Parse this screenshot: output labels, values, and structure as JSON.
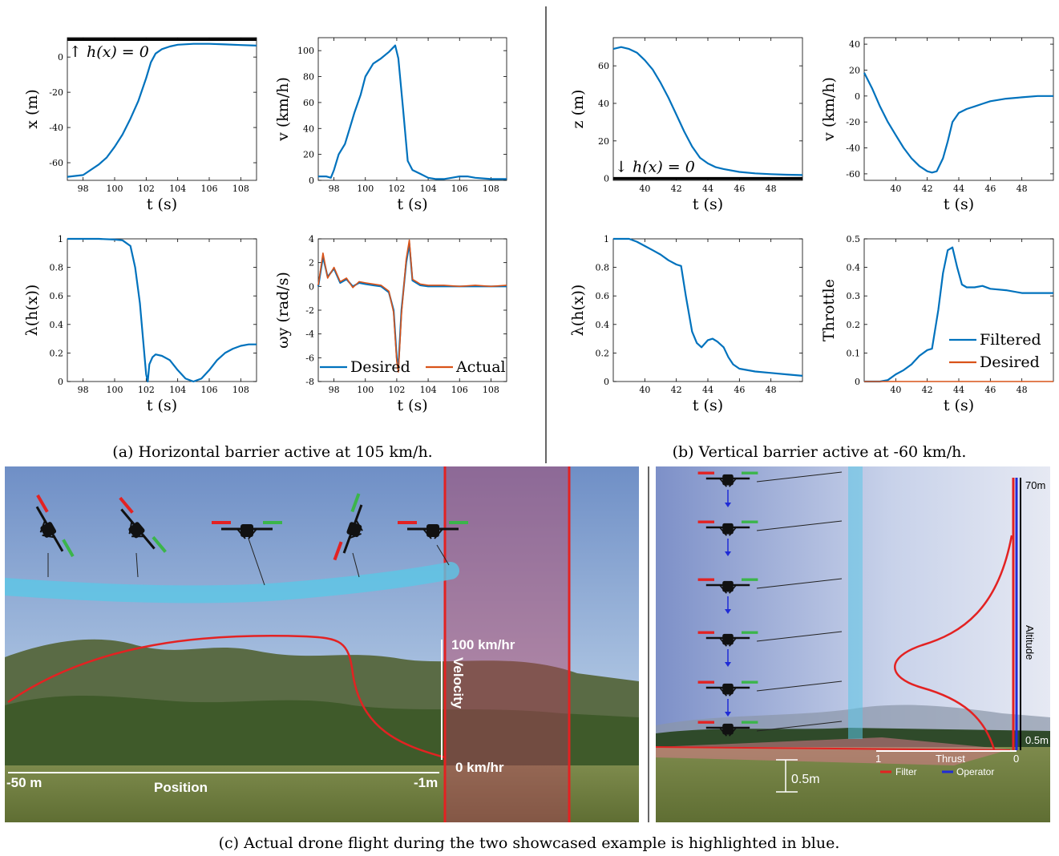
{
  "colors": {
    "blue": "#0072BD",
    "orange": "#D95319",
    "black": "#000000",
    "red": "#e32222",
    "green": "#3bb54a",
    "cyan": "#5bc7e6",
    "operator_blue": "#1f2bd6"
  },
  "captions": {
    "a": "(a) Horizontal barrier active at 105 km/h.",
    "b": "(b) Vertical barrier active at -60 km/h.",
    "c": "(c) Actual drone flight during the two showcased example is highlighted in blue."
  },
  "chart_data": [
    {
      "id": "a1",
      "type": "line",
      "xlabel": "t (s)",
      "ylabel": "x (m)",
      "xlim": [
        97,
        109
      ],
      "ylim": [
        -70,
        11
      ],
      "xticks": [
        98,
        100,
        102,
        104,
        106,
        108
      ],
      "yticks": [
        0,
        -20,
        -40,
        -60
      ],
      "annotation": "↑ h(x) = 0",
      "barrier_y": 10,
      "series": [
        {
          "color": "#0072BD",
          "x": [
            97,
            98,
            99,
            99.5,
            100,
            100.5,
            101,
            101.5,
            102,
            102.3,
            102.6,
            103,
            103.5,
            104,
            105,
            106,
            107,
            108,
            109
          ],
          "y": [
            -68,
            -67,
            -61,
            -57,
            -51,
            -44,
            -35,
            -25,
            -12,
            -3,
            2,
            4.5,
            6,
            7,
            7.5,
            7.5,
            7.2,
            6.8,
            6.5
          ]
        }
      ]
    },
    {
      "id": "a2",
      "type": "line",
      "xlabel": "t (s)",
      "ylabel": "v (km/h)",
      "xlim": [
        97,
        109
      ],
      "ylim": [
        0,
        110
      ],
      "xticks": [
        98,
        100,
        102,
        104,
        106,
        108
      ],
      "yticks": [
        0,
        20,
        40,
        60,
        80,
        100
      ],
      "series": [
        {
          "color": "#0072BD",
          "x": [
            97,
            97.5,
            97.8,
            98,
            98.3,
            98.7,
            99,
            99.3,
            99.7,
            100,
            100.5,
            101,
            101.5,
            101.9,
            102.1,
            102.4,
            102.7,
            103,
            103.5,
            104,
            104.5,
            105,
            105.5,
            106,
            106.5,
            107,
            108,
            109
          ],
          "y": [
            3,
            3,
            2,
            8,
            20,
            28,
            40,
            52,
            66,
            80,
            90,
            94,
            99,
            104,
            94,
            55,
            15,
            8,
            5,
            2,
            1,
            1,
            2,
            3,
            3,
            2,
            1,
            1
          ]
        }
      ]
    },
    {
      "id": "a3",
      "type": "line",
      "xlabel": "t (s)",
      "ylabel": "λ(h(x))",
      "xlim": [
        97,
        109
      ],
      "ylim": [
        0,
        1
      ],
      "xticks": [
        98,
        100,
        102,
        104,
        106,
        108
      ],
      "yticks": [
        0,
        0.2,
        0.4,
        0.6,
        0.8,
        1
      ],
      "series": [
        {
          "color": "#0072BD",
          "x": [
            97,
            99,
            100,
            100.5,
            101,
            101.3,
            101.6,
            101.8,
            102,
            102.1,
            102.2,
            102.4,
            102.6,
            103,
            103.5,
            104,
            104.5,
            105,
            105.5,
            106,
            106.5,
            107,
            107.5,
            108,
            108.5,
            109
          ],
          "y": [
            1,
            1,
            0.995,
            0.99,
            0.95,
            0.8,
            0.55,
            0.3,
            0.05,
            0,
            0.12,
            0.17,
            0.19,
            0.18,
            0.15,
            0.08,
            0.02,
            0,
            0.02,
            0.08,
            0.15,
            0.2,
            0.23,
            0.25,
            0.26,
            0.26
          ]
        }
      ]
    },
    {
      "id": "a4",
      "type": "line",
      "xlabel": "t (s)",
      "ylabel": "ωy (rad/s)",
      "xlim": [
        97,
        109
      ],
      "ylim": [
        -8,
        4
      ],
      "xticks": [
        98,
        100,
        102,
        104,
        106,
        108
      ],
      "yticks": [
        4,
        2,
        0,
        -2,
        -4,
        -6,
        -8
      ],
      "legend": [
        "Desired",
        "Actual"
      ],
      "legend_position": "bottom",
      "series": [
        {
          "name": "Desired",
          "color": "#0072BD",
          "x": [
            97,
            97.3,
            97.6,
            98,
            98.4,
            98.8,
            99.2,
            99.6,
            100,
            100.5,
            101,
            101.5,
            101.8,
            102,
            102.1,
            102.3,
            102.6,
            102.8,
            103,
            103.5,
            104,
            105,
            106,
            107,
            108,
            109
          ],
          "y": [
            0,
            2.5,
            0.8,
            1.5,
            0.3,
            0.6,
            0,
            0.3,
            0.2,
            0.1,
            0,
            -0.5,
            -2,
            -6,
            -6.8,
            -2,
            2,
            3.6,
            0.5,
            0.1,
            0,
            0,
            0,
            0,
            0,
            0
          ]
        },
        {
          "name": "Actual",
          "color": "#D95319",
          "x": [
            97,
            97.3,
            97.6,
            98,
            98.4,
            98.8,
            99.2,
            99.6,
            100,
            100.5,
            101,
            101.5,
            101.8,
            102,
            102.1,
            102.3,
            102.6,
            102.8,
            103,
            103.5,
            104,
            105,
            106,
            107,
            108,
            109
          ],
          "y": [
            0.1,
            2.8,
            0.7,
            1.6,
            0.4,
            0.7,
            -0.1,
            0.4,
            0.3,
            0.2,
            0.1,
            -0.4,
            -2.2,
            -6.3,
            -7.2,
            -2.3,
            2.3,
            3.9,
            0.6,
            0.2,
            0.1,
            0.1,
            0,
            0.1,
            0,
            0.1
          ]
        }
      ]
    },
    {
      "id": "b1",
      "type": "line",
      "xlabel": "t (s)",
      "ylabel": "z (m)",
      "xlim": [
        38,
        50
      ],
      "ylim": [
        -1,
        75
      ],
      "xticks": [
        40,
        42,
        44,
        46,
        48
      ],
      "yticks": [
        0,
        20,
        40,
        60
      ],
      "annotation": "↓ h(x) = 0",
      "barrier_y": 0,
      "series": [
        {
          "color": "#0072BD",
          "x": [
            38,
            38.5,
            39,
            39.5,
            40,
            40.5,
            41,
            41.5,
            42,
            42.5,
            43,
            43.5,
            44,
            44.5,
            45,
            46,
            47,
            48,
            49,
            50
          ],
          "y": [
            69,
            70,
            69,
            67,
            63,
            58,
            51,
            43,
            34,
            25,
            17,
            11,
            8,
            6,
            5,
            3.5,
            2.7,
            2.3,
            2,
            1.8
          ]
        }
      ]
    },
    {
      "id": "b2",
      "type": "line",
      "xlabel": "t (s)",
      "ylabel": "v (km/h)",
      "xlim": [
        38,
        50
      ],
      "ylim": [
        -65,
        45
      ],
      "xticks": [
        40,
        42,
        44,
        46,
        48
      ],
      "yticks": [
        40,
        20,
        0,
        -20,
        -40,
        -60
      ],
      "series": [
        {
          "color": "#0072BD",
          "x": [
            38,
            38.5,
            39,
            39.5,
            40,
            40.5,
            41,
            41.5,
            42,
            42.3,
            42.6,
            43,
            43.3,
            43.6,
            44,
            44.5,
            45,
            45.5,
            46,
            47,
            48,
            49,
            50
          ],
          "y": [
            18,
            6,
            -8,
            -20,
            -30,
            -40,
            -48,
            -54,
            -58,
            -59,
            -58,
            -48,
            -35,
            -20,
            -13,
            -10,
            -8,
            -6,
            -4,
            -2,
            -1,
            0,
            0
          ]
        }
      ]
    },
    {
      "id": "b3",
      "type": "line",
      "xlabel": "t (s)",
      "ylabel": "λ(h(x))",
      "xlim": [
        38,
        50
      ],
      "ylim": [
        0,
        1
      ],
      "xticks": [
        40,
        42,
        44,
        46,
        48
      ],
      "yticks": [
        0,
        0.2,
        0.4,
        0.6,
        0.8,
        1
      ],
      "series": [
        {
          "color": "#0072BD",
          "x": [
            38,
            39,
            39.5,
            40,
            40.5,
            41,
            41.5,
            42,
            42.3,
            42.6,
            43,
            43.3,
            43.6,
            44,
            44.3,
            44.6,
            45,
            45.3,
            45.6,
            46,
            47,
            48,
            49,
            50
          ],
          "y": [
            1,
            1,
            0.98,
            0.95,
            0.92,
            0.89,
            0.85,
            0.82,
            0.81,
            0.6,
            0.35,
            0.27,
            0.24,
            0.29,
            0.3,
            0.28,
            0.24,
            0.17,
            0.12,
            0.09,
            0.07,
            0.06,
            0.05,
            0.04
          ]
        }
      ]
    },
    {
      "id": "b4",
      "type": "line",
      "xlabel": "t (s)",
      "ylabel": "Throttle",
      "xlim": [
        38,
        50
      ],
      "ylim": [
        0,
        0.5
      ],
      "xticks": [
        40,
        42,
        44,
        46,
        48
      ],
      "yticks": [
        0,
        0.1,
        0.2,
        0.3,
        0.4,
        0.5
      ],
      "legend": [
        "Filtered",
        "Desired"
      ],
      "legend_position": "bottom-right",
      "series": [
        {
          "name": "Filtered",
          "color": "#0072BD",
          "x": [
            38,
            39,
            39.5,
            40,
            40.5,
            41,
            41.5,
            42,
            42.3,
            42.7,
            43,
            43.3,
            43.6,
            43.9,
            44.2,
            44.5,
            45,
            45.5,
            46,
            47,
            48,
            49,
            50
          ],
          "y": [
            0,
            0,
            0.005,
            0.025,
            0.04,
            0.06,
            0.09,
            0.11,
            0.115,
            0.25,
            0.38,
            0.46,
            0.47,
            0.4,
            0.34,
            0.33,
            0.33,
            0.335,
            0.325,
            0.32,
            0.31,
            0.31,
            0.31
          ]
        },
        {
          "name": "Desired",
          "color": "#D95319",
          "x": [
            38,
            50
          ],
          "y": [
            0,
            0
          ]
        }
      ]
    }
  ],
  "photo_left": {
    "labels": {
      "velocity_top": "100 km/hr",
      "velocity_bottom": "0 km/hr",
      "velocity_axis": "Velocity",
      "position_left": "-50 m",
      "position_right": "-1m",
      "position_axis": "Position"
    }
  },
  "photo_right": {
    "labels": {
      "altitude_top": "70m",
      "altitude_bottom": "0.5m",
      "altitude_axis": "Altitude",
      "thrust_left": "1",
      "thrust_right": "0",
      "thrust_axis": "Thrust",
      "legend_filter": "Filter",
      "legend_operator": "Operator",
      "ground_height": "0.5m"
    }
  }
}
